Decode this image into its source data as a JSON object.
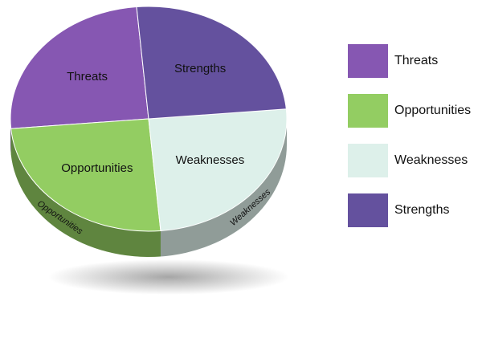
{
  "chart_data": {
    "type": "pie",
    "categories": [
      "Threats",
      "Opportunities",
      "Weaknesses",
      "Strengths"
    ],
    "values": [
      25,
      25,
      25,
      25
    ],
    "colors": [
      "#8657b2",
      "#93cd62",
      "#ddf0ea",
      "#64519e"
    ],
    "legend": "right"
  }
}
